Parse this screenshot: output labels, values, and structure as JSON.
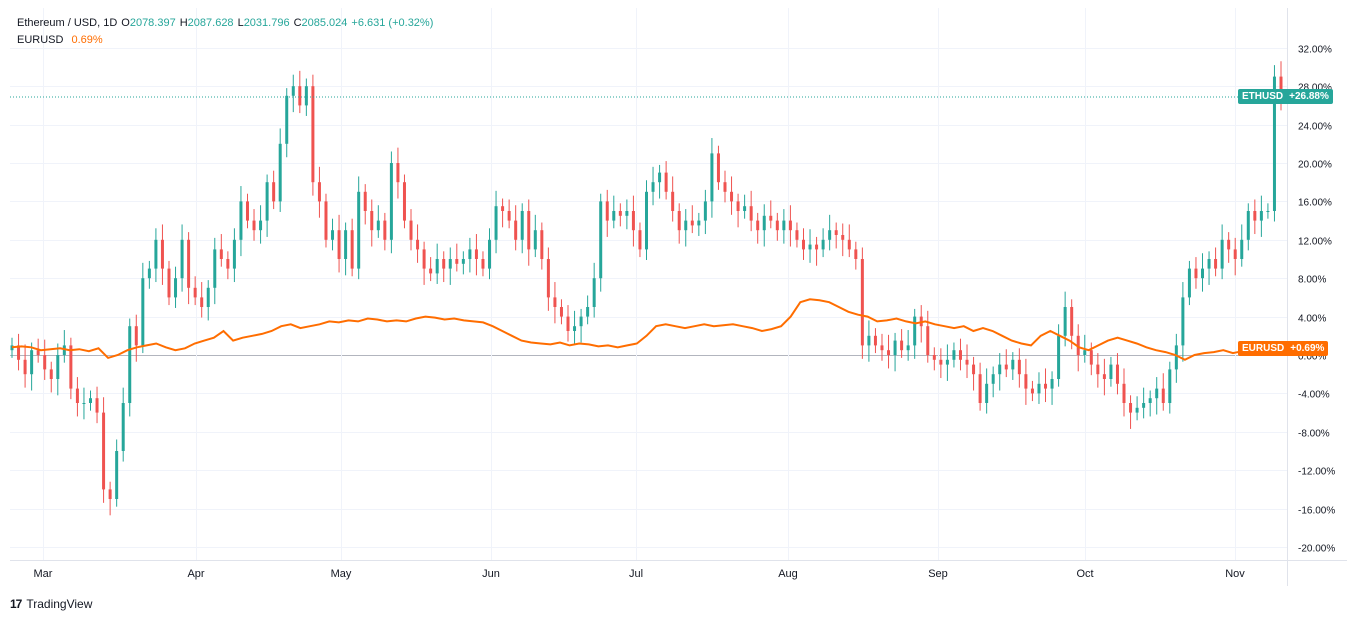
{
  "legend": {
    "symbol": "Ethereum / USD, 1D",
    "o_label": "O",
    "o_value": "2078.397",
    "h_label": "H",
    "h_value": "2087.628",
    "l_label": "L",
    "l_value": "2031.796",
    "c_label": "C",
    "c_value": "2085.024",
    "change": "+6.631 (+0.32%)",
    "compare_symbol": "EURUSD",
    "compare_value": "0.69%"
  },
  "tags": {
    "eth_symbol": "ETHUSD",
    "eth_value": "+26.88%",
    "eur_symbol": "EURUSD",
    "eur_value": "+0.69%"
  },
  "footer": {
    "brand": "TradingView",
    "logo": "17"
  },
  "colors": {
    "up": "#26a69a",
    "down": "#ef5350",
    "compare": "#ff6d00",
    "grid": "#f0f3fa",
    "axis_text": "#131722"
  },
  "chart_data": {
    "type": "line",
    "subtype": "candlestick-with-comparison",
    "title": "Ethereum / USD, 1D",
    "ylabel": "% change",
    "ylim": [
      -22,
      36
    ],
    "y_ticks": [
      "32.00%",
      "28.00%",
      "24.00%",
      "20.00%",
      "16.00%",
      "12.00%",
      "8.00%",
      "4.00%",
      "0.00%",
      "-4.00%",
      "-8.00%",
      "-12.00%",
      "-16.00%",
      "-20.00%"
    ],
    "x_ticks": [
      "Mar",
      "Apr",
      "May",
      "Jun",
      "Jul",
      "Aug",
      "Sep",
      "Oct",
      "Nov"
    ],
    "grid": true,
    "series": [
      {
        "name": "ETHUSD",
        "kind": "candlestick",
        "last_value": 26.88,
        "closes": [
          1.0,
          -0.5,
          -2.0,
          0.5,
          0.0,
          -1.5,
          -2.5,
          0.0,
          1.0,
          -3.5,
          -5.0,
          -5.0,
          -4.5,
          -6.0,
          -14.0,
          -15.0,
          -10.0,
          -5.0,
          3.0,
          1.0,
          8.0,
          9.0,
          12.0,
          9.0,
          6.0,
          8.0,
          12.0,
          7.0,
          6.0,
          5.0,
          7.0,
          11.0,
          10.0,
          9.0,
          12.0,
          16.0,
          14.0,
          13.0,
          14.0,
          18.0,
          16.0,
          22.0,
          27.0,
          28.0,
          26.0,
          28.0,
          18.0,
          16.0,
          12.0,
          13.0,
          10.0,
          13.0,
          9.0,
          17.0,
          15.0,
          13.0,
          14.0,
          12.0,
          20.0,
          18.0,
          14.0,
          12.0,
          11.0,
          9.0,
          8.5,
          10.0,
          9.0,
          10.0,
          9.5,
          10.0,
          11.0,
          10.0,
          9.0,
          12.0,
          15.5,
          15.0,
          14.0,
          12.0,
          15.0,
          11.0,
          13.0,
          10.0,
          6.0,
          5.0,
          4.0,
          2.5,
          3.0,
          4.0,
          5.0,
          8.0,
          16.0,
          14.0,
          15.0,
          14.5,
          15.0,
          13.0,
          11.0,
          17.0,
          18.0,
          19.0,
          17.0,
          15.0,
          13.0,
          14.0,
          13.5,
          14.0,
          16.0,
          21.0,
          18.0,
          17.0,
          16.0,
          15.0,
          15.5,
          14.0,
          13.0,
          14.5,
          14.0,
          13.0,
          14.0,
          13.0,
          12.0,
          11.0,
          11.5,
          11.0,
          12.0,
          13.0,
          12.5,
          12.0,
          11.0,
          10.0,
          1.0,
          2.0,
          1.0,
          0.5,
          0.0,
          1.5,
          0.5,
          1.0,
          4.0,
          3.0,
          0.0,
          -0.5,
          -1.0,
          -0.5,
          0.5,
          -0.5,
          -1.0,
          -2.0,
          -5.0,
          -3.0,
          -2.0,
          -1.0,
          -1.5,
          -0.5,
          -2.0,
          -3.5,
          -4.0,
          -3.0,
          -3.5,
          -2.5,
          2.0,
          5.0,
          2.0,
          0.0,
          0.5,
          -1.0,
          -2.0,
          -2.5,
          -1.0,
          -3.0,
          -5.0,
          -6.0,
          -5.5,
          -5.0,
          -4.5,
          -3.5,
          -5.0,
          -1.5,
          1.0,
          6.0,
          9.0,
          8.0,
          9.0,
          10.0,
          9.0,
          12.0,
          11.0,
          10.0,
          12.0,
          15.0,
          14.0,
          15.0,
          15.0,
          29.0,
          26.88
        ]
      },
      {
        "name": "EURUSD",
        "kind": "line",
        "last_value": 0.69,
        "values": [
          0.8,
          0.9,
          0.8,
          0.5,
          0.6,
          0.7,
          0.5,
          0.6,
          0.4,
          0.7,
          -0.3,
          0.0,
          0.5,
          0.8,
          1.0,
          1.2,
          0.8,
          0.5,
          0.7,
          1.2,
          1.5,
          1.8,
          2.5,
          1.5,
          1.8,
          2.0,
          2.2,
          2.5,
          3.0,
          3.2,
          2.8,
          3.0,
          3.2,
          3.5,
          3.4,
          3.6,
          3.5,
          3.8,
          3.7,
          3.5,
          3.6,
          3.5,
          3.8,
          4.0,
          3.9,
          3.7,
          3.8,
          3.6,
          3.5,
          3.4,
          3.0,
          2.5,
          2.0,
          1.5,
          1.3,
          1.2,
          1.1,
          1.3,
          1.0,
          1.2,
          1.1,
          0.9,
          1.0,
          0.8,
          1.0,
          1.2,
          2.0,
          3.0,
          3.2,
          3.0,
          2.8,
          3.0,
          3.2,
          3.0,
          3.1,
          3.2,
          3.0,
          2.8,
          2.5,
          2.7,
          3.0,
          4.0,
          5.5,
          5.8,
          5.7,
          5.5,
          5.0,
          4.5,
          4.2,
          4.0,
          3.5,
          3.6,
          3.8,
          3.5,
          3.3,
          3.5,
          3.2,
          3.0,
          2.8,
          3.0,
          2.5,
          2.8,
          2.5,
          2.0,
          1.5,
          1.2,
          1.0,
          2.0,
          2.5,
          2.0,
          1.5,
          0.8,
          0.5,
          1.0,
          1.5,
          1.8,
          1.5,
          1.2,
          0.8,
          0.5,
          0.3,
          0.0,
          -0.5,
          0.0,
          0.2,
          0.3,
          0.5,
          0.2,
          0.4,
          0.7,
          0.5,
          0.6,
          0.69
        ]
      }
    ]
  }
}
